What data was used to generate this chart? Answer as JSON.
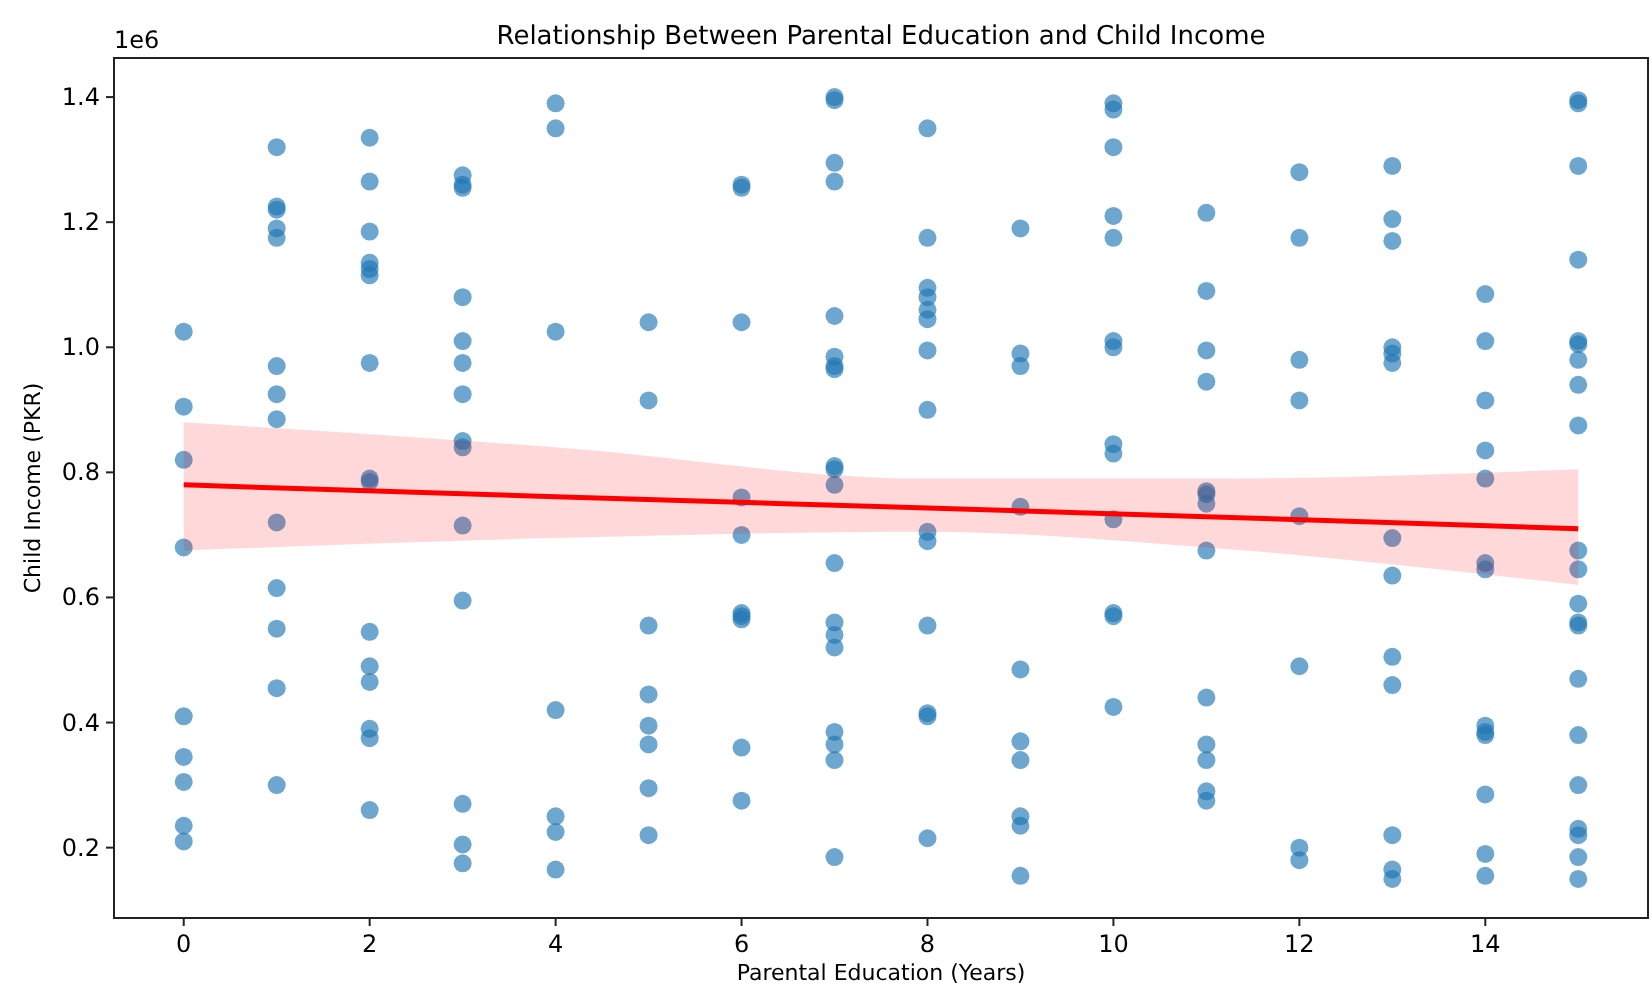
{
  "chart_data": {
    "type": "scatter",
    "title": "Relationship Between Parental Education and Child Income",
    "xlabel": "Parental Education (Years)",
    "ylabel": "Child Income (PKR)",
    "annotations": [
      "1e6"
    ],
    "xlim": [
      -0.75,
      15.75
    ],
    "xticks": [
      0,
      2,
      4,
      6,
      8,
      10,
      12,
      14
    ],
    "ylim": [
      0.0875,
      1.4625
    ],
    "yticks": [
      0.2,
      0.4,
      0.6,
      0.8,
      {
        "value": 1.0,
        "label": "1.0"
      },
      1.2,
      1.4
    ],
    "grid": false,
    "series": [
      {
        "marker": "circle",
        "color": "#1f77b4",
        "x": [
          0,
          0,
          0,
          0,
          0,
          0,
          0,
          0,
          0,
          1,
          1,
          1,
          1,
          1,
          1,
          1,
          1,
          1,
          1,
          1,
          1,
          1,
          2,
          2,
          2,
          2,
          2,
          2,
          2,
          2,
          2,
          2,
          2,
          2,
          2,
          2,
          2,
          3,
          3,
          3,
          3,
          3,
          3,
          3,
          3,
          3,
          3,
          3,
          3,
          3,
          3,
          4,
          4,
          4,
          4,
          4,
          4,
          4,
          5,
          5,
          5,
          5,
          5,
          5,
          5,
          5,
          6,
          6,
          6,
          6,
          6,
          6,
          6,
          6,
          6,
          6,
          7,
          7,
          7,
          7,
          7,
          7,
          7,
          7,
          7,
          7,
          7,
          7,
          7,
          7,
          7,
          7,
          7,
          7,
          7,
          8,
          8,
          8,
          8,
          8,
          8,
          8,
          8,
          8,
          8,
          8,
          8,
          8,
          8,
          9,
          9,
          9,
          9,
          9,
          9,
          9,
          9,
          9,
          9,
          10,
          10,
          10,
          10,
          10,
          10,
          10,
          10,
          10,
          10,
          10,
          10,
          10,
          11,
          11,
          11,
          11,
          11,
          11,
          11,
          11,
          11,
          11,
          11,
          11,
          11,
          12,
          12,
          12,
          12,
          12,
          12,
          12,
          12,
          13,
          13,
          13,
          13,
          13,
          13,
          13,
          13,
          13,
          13,
          13,
          13,
          13,
          14,
          14,
          14,
          14,
          14,
          14,
          14,
          14,
          14,
          14,
          14,
          14,
          14,
          15,
          15,
          15,
          15,
          15,
          15,
          15,
          15,
          15,
          15,
          15,
          15,
          15,
          15,
          15,
          15,
          15,
          15,
          15,
          15,
          15
        ],
        "values": [
          1.025,
          0.905,
          0.82,
          0.68,
          0.41,
          0.345,
          0.305,
          0.235,
          0.21,
          1.32,
          1.225,
          1.22,
          1.19,
          1.175,
          0.97,
          0.925,
          0.885,
          0.72,
          0.615,
          0.55,
          0.455,
          0.3,
          1.335,
          1.265,
          1.185,
          1.135,
          1.125,
          1.115,
          0.975,
          0.79,
          0.785,
          0.545,
          0.49,
          0.465,
          0.39,
          0.375,
          0.26,
          1.275,
          1.26,
          1.255,
          1.08,
          1.01,
          0.975,
          0.925,
          0.85,
          0.84,
          0.715,
          0.595,
          0.27,
          0.205,
          0.175,
          1.39,
          1.35,
          1.025,
          0.42,
          0.25,
          0.225,
          0.165,
          1.04,
          0.915,
          0.555,
          0.445,
          0.395,
          0.365,
          0.295,
          0.22,
          1.26,
          1.255,
          1.04,
          0.76,
          0.7,
          0.575,
          0.57,
          0.565,
          0.36,
          0.275,
          1.4,
          1.395,
          1.295,
          1.265,
          1.05,
          0.985,
          0.97,
          0.965,
          0.81,
          0.805,
          0.78,
          0.655,
          0.56,
          0.54,
          0.52,
          0.385,
          0.365,
          0.34,
          0.185,
          1.35,
          1.175,
          1.095,
          1.08,
          1.06,
          1.045,
          0.995,
          0.9,
          0.705,
          0.69,
          0.555,
          0.415,
          0.41,
          0.215,
          1.19,
          0.99,
          0.97,
          0.745,
          0.485,
          0.37,
          0.34,
          0.25,
          0.235,
          0.155,
          1.39,
          1.38,
          1.32,
          1.21,
          1.175,
          1.01,
          1.0,
          0.845,
          0.83,
          0.725,
          0.575,
          0.57,
          0.425,
          1.215,
          1.09,
          0.995,
          0.945,
          0.77,
          0.765,
          0.75,
          0.675,
          0.44,
          0.365,
          0.34,
          0.29,
          0.275,
          1.28,
          1.175,
          0.98,
          0.915,
          0.73,
          0.49,
          0.2,
          0.18,
          1.29,
          1.205,
          1.17,
          1.0,
          0.99,
          0.975,
          0.695,
          0.635,
          0.505,
          0.46,
          0.22,
          0.165,
          0.15,
          1.085,
          1.01,
          0.915,
          0.835,
          0.79,
          0.655,
          0.645,
          0.395,
          0.385,
          0.38,
          0.285,
          0.19,
          0.155,
          1.395,
          1.39,
          1.29,
          1.14,
          1.01,
          1.005,
          0.98,
          0.94,
          0.875,
          0.675,
          0.645,
          0.59,
          0.56,
          0.555,
          0.47,
          0.38,
          0.3,
          0.23,
          0.22,
          0.185,
          0.15
        ]
      },
      {
        "type": "line",
        "marker": "none",
        "color": "#ff0000",
        "x": [
          0,
          4,
          8,
          11,
          15
        ],
        "values": [
          0.78,
          0.761,
          0.743,
          0.729,
          0.71
        ],
        "lower": [
          0.675,
          0.695,
          0.705,
          0.68,
          0.62
        ],
        "upper": [
          0.88,
          0.84,
          0.79,
          0.79,
          0.805
        ]
      }
    ]
  }
}
